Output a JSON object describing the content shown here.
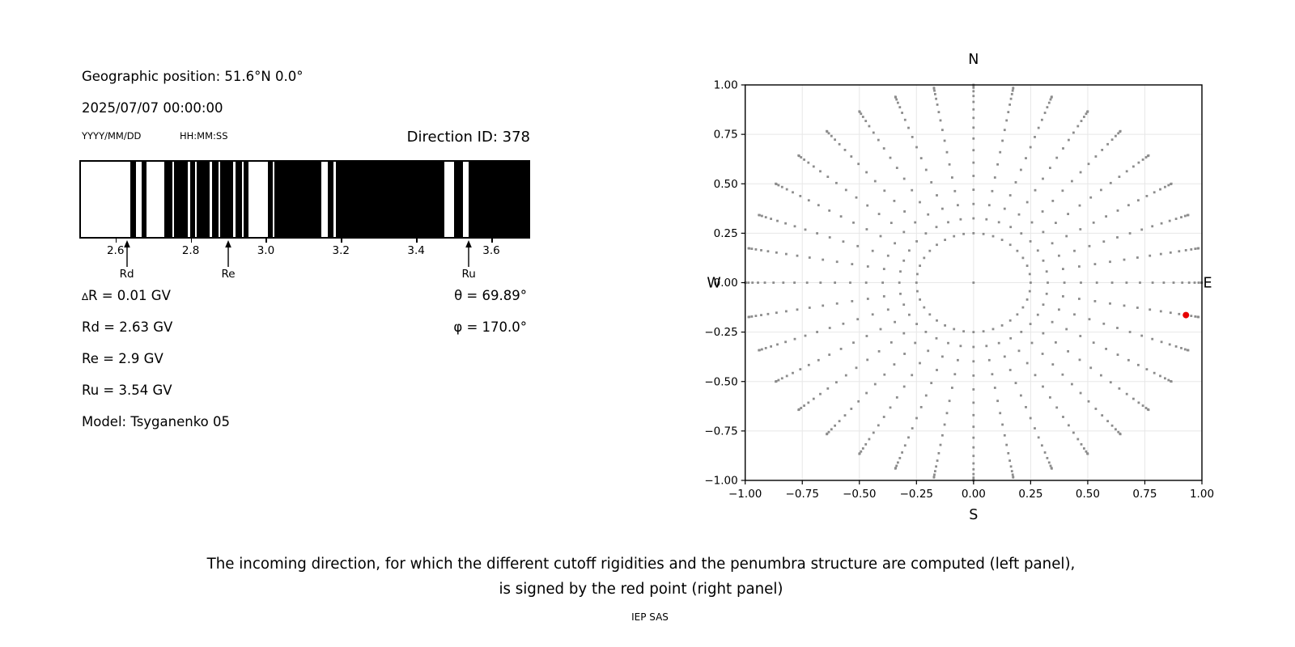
{
  "header": {
    "geographic_position": "Geographic position: 51.6°N 0.0°",
    "datetime": "2025/07/07 00:00:00",
    "date_format_label": "YYYY/MM/DD",
    "time_format_label": "HH:MM:SS",
    "direction_id": "Direction ID: 378"
  },
  "results": {
    "delta_symbol": "∆",
    "delta_rest": "R = 0.01 GV",
    "rd": "Rd = 2.63 GV",
    "re": "Re = 2.9 GV",
    "ru": "Ru = 3.54 GV",
    "model": "Model: Tsyganenko 05",
    "theta": "θ = 69.89°",
    "phi": "φ = 170.0°"
  },
  "caption": {
    "line1": "The incoming direction, for which the different cutoff rigidities and the penumbra structure are computed (left panel),",
    "line2": "is signed by the red point (right panel)",
    "credit": "IEP SAS"
  },
  "chart_data": [
    {
      "type": "heatmap",
      "name": "penumbra-barcode",
      "description": "Penumbra structure: black = allowed rigidities, white = forbidden",
      "x_range_gv": [
        2.508,
        3.699
      ],
      "x_ticks": [
        2.6,
        2.8,
        3.0,
        3.2,
        3.4,
        3.6
      ],
      "x_tick_labels": [
        "2.6",
        "2.8",
        "3.0",
        "3.2",
        "3.4",
        "3.6"
      ],
      "allowed_bands_gv": [
        [
          2.64,
          2.655
        ],
        [
          2.67,
          2.682
        ],
        [
          2.729,
          2.751
        ],
        [
          2.756,
          2.792
        ],
        [
          2.799,
          2.811
        ],
        [
          2.816,
          2.85
        ],
        [
          2.857,
          2.874
        ],
        [
          2.879,
          2.912
        ],
        [
          2.919,
          2.936
        ],
        [
          2.941,
          2.953
        ],
        [
          3.005,
          3.019
        ],
        [
          3.023,
          3.148
        ],
        [
          3.164,
          3.18
        ],
        [
          3.186,
          3.474
        ],
        [
          3.501,
          3.525
        ],
        [
          3.54,
          3.699
        ]
      ],
      "markers": [
        {
          "label": "Rd",
          "value_gv": 2.63
        },
        {
          "label": "Re",
          "value_gv": 2.9
        },
        {
          "label": "Ru",
          "value_gv": 3.54
        }
      ],
      "bar_color": "#000000",
      "background": "#ffffff"
    },
    {
      "type": "scatter",
      "name": "direction-compass",
      "compass": {
        "top": "N",
        "bottom": "S",
        "left": "W",
        "right": "E"
      },
      "xlim": [
        -1.0,
        1.0
      ],
      "ylim": [
        -1.0,
        1.0
      ],
      "x_tick_labels": [
        "−1.00",
        "−0.75",
        "−0.50",
        "−0.25",
        "0.00",
        "0.25",
        "0.50",
        "0.75",
        "1.00"
      ],
      "y_tick_labels": [
        "1.00",
        "0.75",
        "0.50",
        "0.25",
        "0.00",
        "−0.25",
        "−0.50",
        "−0.75",
        "−1.00"
      ],
      "tick_values": [
        -1.0,
        -0.75,
        -0.5,
        -0.25,
        0.0,
        0.25,
        0.5,
        0.75,
        1.0
      ],
      "grid": true,
      "grid_color": "#e7e7e7",
      "azimuth_count": 36,
      "azimuth_step_deg": 10,
      "radial_values": [
        0.25,
        0.325,
        0.398,
        0.47,
        0.54,
        0.607,
        0.67,
        0.729,
        0.784,
        0.833,
        0.876,
        0.914,
        0.944,
        0.968,
        0.986,
        0.997,
        1.0
      ],
      "center_dot": true,
      "dot_color": "#8c8c8c",
      "red_point": {
        "x": 0.93,
        "y": -0.164,
        "color": "#e60000"
      }
    }
  ]
}
